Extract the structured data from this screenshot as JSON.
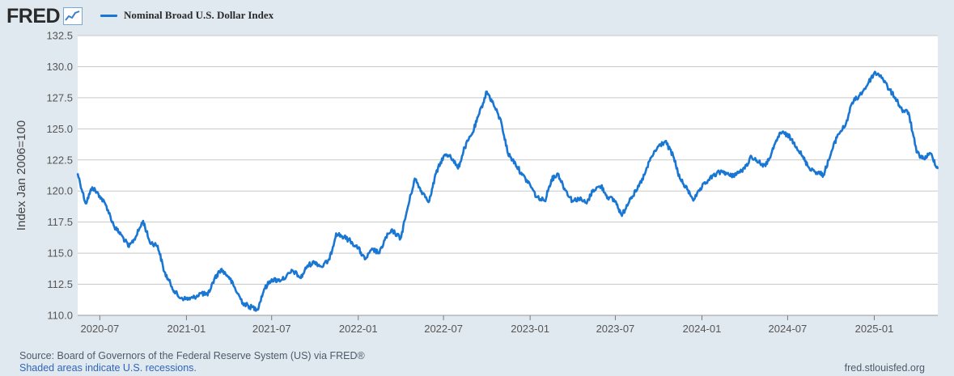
{
  "header": {
    "logo_text": "FRED",
    "logo_icon": "trend-chart-icon",
    "legend_label": "Nominal Broad U.S. Dollar Index",
    "legend_color": "#1976d2"
  },
  "footer": {
    "source": "Source: Board of Governors of the Federal Reserve System (US) via FRED®",
    "recessions": "Shaded areas indicate U.S. recessions.",
    "site": "fred.stlouisfed.org"
  },
  "colors": {
    "background": "#e1e9f0",
    "plot_background": "#ffffff",
    "gridline": "#c8c8c8",
    "series": "#1976d2"
  },
  "chart_data": {
    "type": "line",
    "title": "",
    "xlabel": "",
    "ylabel": "Index Jan 2006=100",
    "ylim": [
      110.0,
      132.5
    ],
    "xlim": [
      "2020-05-15",
      "2025-05-16"
    ],
    "y_ticks": [
      "110.0",
      "112.5",
      "115.0",
      "117.5",
      "120.0",
      "122.5",
      "125.0",
      "127.5",
      "130.0",
      "132.5"
    ],
    "x_ticks": [
      "2020-07",
      "2021-01",
      "2021-07",
      "2022-01",
      "2022-07",
      "2023-01",
      "2023-07",
      "2024-01",
      "2024-07",
      "2025-01"
    ],
    "grid": true,
    "legend": "top-left",
    "series": [
      {
        "name": "Nominal Broad U.S. Dollar Index",
        "frequency": "daily",
        "x": [
          "2020-05-15",
          "2020-06-01",
          "2020-06-15",
          "2020-07-01",
          "2020-07-15",
          "2020-08-01",
          "2020-08-15",
          "2020-09-01",
          "2020-09-15",
          "2020-10-01",
          "2020-10-15",
          "2020-11-01",
          "2020-11-15",
          "2020-12-01",
          "2020-12-15",
          "2021-01-01",
          "2021-01-15",
          "2021-02-01",
          "2021-02-15",
          "2021-03-01",
          "2021-03-15",
          "2021-04-01",
          "2021-04-15",
          "2021-05-01",
          "2021-05-15",
          "2021-06-01",
          "2021-06-15",
          "2021-07-01",
          "2021-07-15",
          "2021-08-01",
          "2021-08-15",
          "2021-09-01",
          "2021-09-15",
          "2021-10-01",
          "2021-10-15",
          "2021-11-01",
          "2021-11-15",
          "2021-12-01",
          "2021-12-15",
          "2022-01-01",
          "2022-01-15",
          "2022-02-01",
          "2022-02-15",
          "2022-03-01",
          "2022-03-15",
          "2022-04-01",
          "2022-04-15",
          "2022-05-01",
          "2022-05-15",
          "2022-06-01",
          "2022-06-15",
          "2022-07-01",
          "2022-07-15",
          "2022-08-01",
          "2022-08-15",
          "2022-09-01",
          "2022-09-15",
          "2022-10-01",
          "2022-10-15",
          "2022-11-01",
          "2022-11-15",
          "2022-12-01",
          "2022-12-15",
          "2023-01-01",
          "2023-01-15",
          "2023-02-01",
          "2023-02-15",
          "2023-03-01",
          "2023-03-15",
          "2023-04-01",
          "2023-04-15",
          "2023-05-01",
          "2023-05-15",
          "2023-06-01",
          "2023-06-15",
          "2023-07-01",
          "2023-07-15",
          "2023-08-01",
          "2023-08-15",
          "2023-09-01",
          "2023-09-15",
          "2023-10-01",
          "2023-10-15",
          "2023-11-01",
          "2023-11-15",
          "2023-12-01",
          "2023-12-15",
          "2024-01-01",
          "2024-01-15",
          "2024-02-01",
          "2024-02-15",
          "2024-03-01",
          "2024-03-15",
          "2024-04-01",
          "2024-04-15",
          "2024-05-01",
          "2024-05-15",
          "2024-06-01",
          "2024-06-15",
          "2024-07-01",
          "2024-07-15",
          "2024-08-01",
          "2024-08-15",
          "2024-09-01",
          "2024-09-15",
          "2024-10-01",
          "2024-10-15",
          "2024-11-01",
          "2024-11-15",
          "2024-12-01",
          "2024-12-15",
          "2025-01-01",
          "2025-01-15",
          "2025-02-01",
          "2025-02-15",
          "2025-03-01",
          "2025-03-15",
          "2025-04-01",
          "2025-04-15",
          "2025-05-01",
          "2025-05-16"
        ],
        "values": [
          121.4,
          119.0,
          120.3,
          119.6,
          118.8,
          117.1,
          116.5,
          115.5,
          116.3,
          117.6,
          115.9,
          115.6,
          113.5,
          112.3,
          111.5,
          111.3,
          111.4,
          111.8,
          111.6,
          112.9,
          113.7,
          113.1,
          112.1,
          111.0,
          110.7,
          110.5,
          112.1,
          112.9,
          112.8,
          113.1,
          113.6,
          113.0,
          114.0,
          114.3,
          113.9,
          114.5,
          116.6,
          116.3,
          116.0,
          115.4,
          114.5,
          115.3,
          115.0,
          116.3,
          116.8,
          116.2,
          118.5,
          121.0,
          120.0,
          119.2,
          121.4,
          122.8,
          122.9,
          121.8,
          123.5,
          124.7,
          126.2,
          128.0,
          127.0,
          125.5,
          123.0,
          122.2,
          121.3,
          120.5,
          119.5,
          119.2,
          120.9,
          121.4,
          120.2,
          119.2,
          119.4,
          119.0,
          120.1,
          120.4,
          119.5,
          119.2,
          118.0,
          119.4,
          120.0,
          121.3,
          122.7,
          123.6,
          124.0,
          122.8,
          121.0,
          120.1,
          119.3,
          120.3,
          120.9,
          121.4,
          121.6,
          121.2,
          121.4,
          121.8,
          122.8,
          122.3,
          122.0,
          123.4,
          124.7,
          124.5,
          123.9,
          122.8,
          121.9,
          121.5,
          121.3,
          123.0,
          124.5,
          125.3,
          127.1,
          127.7,
          128.4,
          129.5,
          129.3,
          128.2,
          127.5,
          126.5,
          126.3,
          123.1,
          122.6,
          123.0,
          121.8
        ]
      }
    ]
  }
}
